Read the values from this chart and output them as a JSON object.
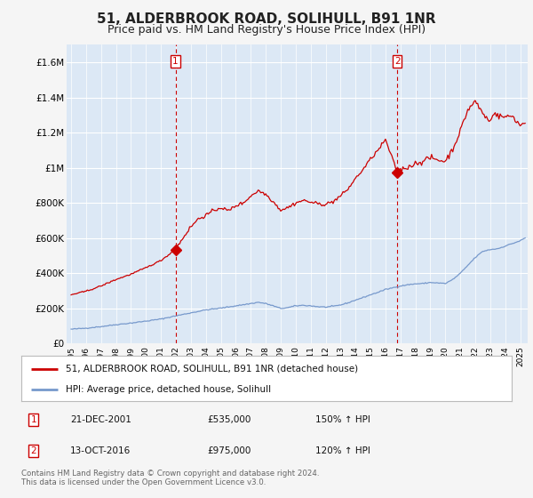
{
  "title": "51, ALDERBROOK ROAD, SOLIHULL, B91 1NR",
  "subtitle": "Price paid vs. HM Land Registry's House Price Index (HPI)",
  "title_fontsize": 11,
  "subtitle_fontsize": 9,
  "background_color": "#f5f5f5",
  "plot_background": "#dce8f5",
  "grid_color": "#ffffff",
  "ylim": [
    0,
    1700000
  ],
  "yticks": [
    0,
    200000,
    400000,
    600000,
    800000,
    1000000,
    1200000,
    1400000,
    1600000
  ],
  "ytick_labels": [
    "£0",
    "£200K",
    "£400K",
    "£600K",
    "£800K",
    "£1M",
    "£1.2M",
    "£1.4M",
    "£1.6M"
  ],
  "xlim_start": 1994.7,
  "xlim_end": 2025.5,
  "xticks": [
    1995,
    1996,
    1997,
    1998,
    1999,
    2000,
    2001,
    2002,
    2003,
    2004,
    2005,
    2006,
    2007,
    2008,
    2009,
    2010,
    2011,
    2012,
    2013,
    2014,
    2015,
    2016,
    2017,
    2018,
    2019,
    2020,
    2021,
    2022,
    2023,
    2024,
    2025
  ],
  "house_color": "#cc0000",
  "hpi_color": "#7799cc",
  "sale1_x": 2001.97,
  "sale1_y": 535000,
  "sale2_x": 2016.79,
  "sale2_y": 975000,
  "vline_color": "#cc0000",
  "legend_label_house": "51, ALDERBROOK ROAD, SOLIHULL, B91 1NR (detached house)",
  "legend_label_hpi": "HPI: Average price, detached house, Solihull",
  "annotation1_num": "1",
  "annotation1_date": "21-DEC-2001",
  "annotation1_price": "£535,000",
  "annotation1_hpi": "150% ↑ HPI",
  "annotation2_num": "2",
  "annotation2_date": "13-OCT-2016",
  "annotation2_price": "£975,000",
  "annotation2_hpi": "120% ↑ HPI",
  "footer": "Contains HM Land Registry data © Crown copyright and database right 2024.\nThis data is licensed under the Open Government Licence v3.0."
}
